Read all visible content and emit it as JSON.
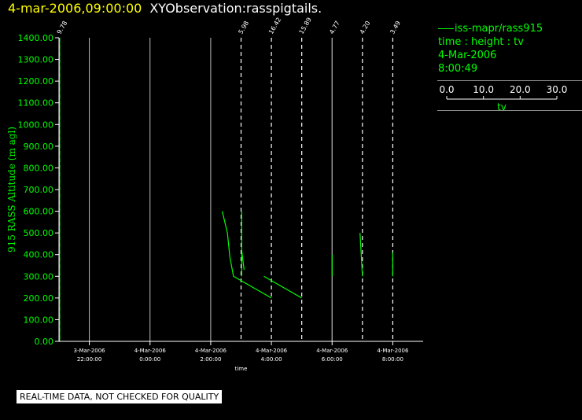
{
  "header": {
    "timestamp": "4-mar-2006,09:00:00",
    "title": "XYObservation:rasspigtails."
  },
  "legend": {
    "series_label": "iss-mapr/rass915",
    "axes_desc": "time : height : tv",
    "date": "4-Mar-2006",
    "time": "8:00:49",
    "tv_scale": {
      "ticks": [
        "0.0",
        "10.0",
        "20.0",
        "30.0"
      ],
      "values": [
        0,
        10,
        20,
        30
      ],
      "label": "tv"
    }
  },
  "footer": {
    "note": "REAL-TIME DATA, NOT CHECKED FOR QUALITY"
  },
  "colors": {
    "background": "#000000",
    "axis": "#ffffff",
    "series": "#00ff00",
    "grid": "#bbbbbb",
    "title_time": "#ffff00",
    "title_text": "#ffffff"
  },
  "chart_data": {
    "type": "line",
    "title": "",
    "xlabel": "time",
    "ylabel": "915 RASS Altitude (m agl)",
    "ylim": [
      0,
      1400
    ],
    "xlim": [
      -3.0,
      9.0
    ],
    "y_ticks": [
      0,
      100,
      200,
      300,
      400,
      500,
      600,
      700,
      800,
      900,
      1000,
      1100,
      1200,
      1300,
      1400
    ],
    "y_tick_labels": [
      "0.00",
      "100.00",
      "200.00",
      "300.00",
      "400.00",
      "500.00",
      "600.00",
      "700.00",
      "800.00",
      "900.00",
      "1000.00",
      "1100.00",
      "1200.00",
      "1300.00",
      "1400.00"
    ],
    "x_ticks": [
      {
        "x": -2,
        "date": "3-Mar-2006",
        "time": "22:00:00"
      },
      {
        "x": 0,
        "date": "4-Mar-2006",
        "time": "0:00:00"
      },
      {
        "x": 2,
        "date": "4-Mar-2006",
        "time": "2:00:00"
      },
      {
        "x": 4,
        "date": "4-Mar-2006",
        "time": "4:00:00"
      },
      {
        "x": 6,
        "date": "4-Mar-2006",
        "time": "6:00:00"
      },
      {
        "x": 8,
        "date": "4-Mar-2006",
        "time": "8:00:00"
      }
    ],
    "solid_time_lines": [
      -2,
      0,
      2
    ],
    "profiles": [
      {
        "x": -2.98,
        "label": "9.78",
        "dashed": true
      },
      {
        "x": 3.0,
        "label": "5.98",
        "dashed": true
      },
      {
        "x": 4.0,
        "label": "16.42",
        "dashed": true
      },
      {
        "x": 5.0,
        "label": "15.89",
        "dashed": true
      },
      {
        "x": 6.0,
        "label": "4.77",
        "dashed": false
      },
      {
        "x": 7.0,
        "label": "4.20",
        "dashed": true
      },
      {
        "x": 8.0,
        "label": "3.49",
        "dashed": true
      }
    ],
    "series": [
      {
        "name": "iss-mapr/rass915",
        "segments": [
          [
            [
              -2.98,
              0
            ],
            [
              -2.98,
              1400
            ]
          ],
          [
            [
              2.38,
              600
            ],
            [
              2.55,
              500
            ],
            [
              2.63,
              390
            ],
            [
              2.75,
              300
            ],
            [
              4.0,
              200
            ]
          ],
          [
            [
              3.02,
              600
            ],
            [
              3.02,
              300
            ]
          ],
          [
            [
              3.02,
              420
            ],
            [
              3.1,
              330
            ]
          ],
          [
            [
              3.75,
              300
            ],
            [
              5.0,
              200
            ]
          ],
          [
            [
              6.0,
              400
            ],
            [
              6.0,
              300
            ]
          ],
          [
            [
              6.92,
              500
            ],
            [
              7.0,
              300
            ]
          ],
          [
            [
              8.0,
              410
            ],
            [
              8.0,
              300
            ]
          ]
        ]
      }
    ]
  }
}
